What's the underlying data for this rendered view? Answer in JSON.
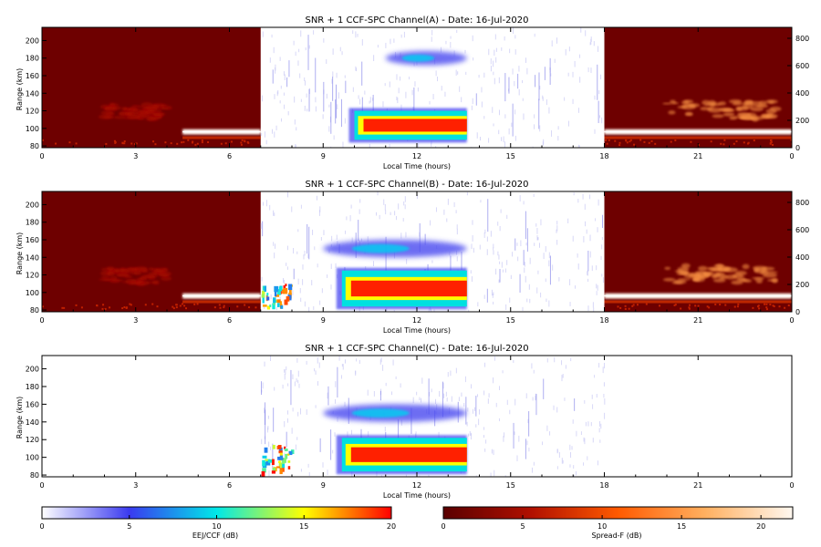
{
  "chart_data": [
    {
      "type": "heatmap",
      "title": "SNR + 1 CCF-SPC Channel(A) - Date: 16-Jul-2020",
      "xlabel": "Local Time (hours)",
      "ylabel": "Range (km)",
      "xlim": [
        0,
        24
      ],
      "ylim": [
        78,
        215
      ],
      "x_ticks": [
        "0",
        "3",
        "6",
        "9",
        "12",
        "15",
        "18",
        "21",
        "0"
      ],
      "y_ticks": [
        "80",
        "100",
        "120",
        "140",
        "160",
        "180",
        "200"
      ],
      "right_ticks": [
        "0",
        "200",
        "400",
        "600",
        "800"
      ],
      "right_ylim": [
        0,
        880
      ],
      "spreadf_segments": [
        [
          0,
          7
        ],
        [
          18,
          24
        ]
      ],
      "eej_data": {
        "x_range": [
          7,
          18
        ],
        "features": [
          {
            "range_km": [
              87,
              120
            ],
            "time_h": [
              10.0,
              13.6
            ],
            "peak_db": 20
          },
          {
            "range_km": [
              172,
              188
            ],
            "time_h": [
              11.0,
              13.6
            ],
            "peak_db": 5
          }
        ]
      },
      "spreadf_data": {
        "features": [
          {
            "range_km": [
              93,
              99
            ],
            "time_h": [
              4.5,
              7.0
            ],
            "peak_db": 22
          },
          {
            "range_km": [
              93,
              99
            ],
            "time_h": [
              18.0,
              24.0
            ],
            "peak_db": 22
          },
          {
            "range_km": [
              110,
              140
            ],
            "time_h": [
              20.0,
              23.5
            ],
            "peak_db": 15
          },
          {
            "range_km": [
              110,
              135
            ],
            "time_h": [
              2.0,
              4.0
            ],
            "peak_db": 5
          }
        ]
      }
    },
    {
      "type": "heatmap",
      "title": "SNR + 1 CCF-SPC Channel(B) - Date: 16-Jul-2020",
      "xlabel": "Local Time (hours)",
      "ylabel": "Range (km)",
      "xlim": [
        0,
        24
      ],
      "ylim": [
        78,
        215
      ],
      "x_ticks": [
        "0",
        "3",
        "6",
        "9",
        "12",
        "15",
        "18",
        "21",
        "0"
      ],
      "y_ticks": [
        "80",
        "100",
        "120",
        "140",
        "160",
        "180",
        "200"
      ],
      "right_ticks": [
        "0",
        "200",
        "400",
        "600",
        "800"
      ],
      "right_ylim": [
        0,
        880
      ],
      "spreadf_segments": [
        [
          0,
          7
        ],
        [
          18,
          24
        ]
      ],
      "eej_data": {
        "x_range": [
          7,
          18
        ],
        "features": [
          {
            "range_km": [
              84,
              125
            ],
            "time_h": [
              9.6,
              13.6
            ],
            "peak_db": 20
          },
          {
            "range_km": [
              140,
              160
            ],
            "time_h": [
              9.0,
              13.6
            ],
            "peak_db": 8
          },
          {
            "range_km": [
              84,
              110
            ],
            "time_h": [
              7.0,
              8.0
            ],
            "peak_db": 12
          }
        ]
      },
      "spreadf_data": {
        "features": [
          {
            "range_km": [
              93,
              99
            ],
            "time_h": [
              4.5,
              7.0
            ],
            "peak_db": 22
          },
          {
            "range_km": [
              93,
              99
            ],
            "time_h": [
              18.0,
              24.0
            ],
            "peak_db": 22
          },
          {
            "range_km": [
              110,
              140
            ],
            "time_h": [
              20.0,
              23.5
            ],
            "peak_db": 15
          },
          {
            "range_km": [
              110,
              135
            ],
            "time_h": [
              2.0,
              4.0
            ],
            "peak_db": 5
          }
        ]
      }
    },
    {
      "type": "heatmap",
      "title": "SNR + 1 CCF-SPC Channel(C) - Date: 16-Jul-2020",
      "xlabel": "Local Time (hours)",
      "ylabel": "Range (km)",
      "xlim": [
        0,
        24
      ],
      "ylim": [
        78,
        215
      ],
      "x_ticks": [
        "0",
        "3",
        "6",
        "9",
        "12",
        "15",
        "18",
        "21",
        "0"
      ],
      "y_ticks": [
        "80",
        "100",
        "120",
        "140",
        "160",
        "180",
        "200"
      ],
      "spreadf_segments": [],
      "eej_data": {
        "x_range": [
          7,
          18
        ],
        "features": [
          {
            "range_km": [
              84,
              122
            ],
            "time_h": [
              9.6,
              13.6
            ],
            "peak_db": 20
          },
          {
            "range_km": [
              140,
              160
            ],
            "time_h": [
              9.0,
              13.6
            ],
            "peak_db": 8
          },
          {
            "range_km": [
              84,
              115
            ],
            "time_h": [
              7.0,
              8.0
            ],
            "peak_db": 12
          }
        ]
      }
    }
  ],
  "colorbars": [
    {
      "label": "EEJ/CCF (dB)",
      "ticks": [
        "0",
        "5",
        "10",
        "15",
        "20"
      ],
      "range": [
        0,
        20
      ],
      "colors": [
        "#ffffff",
        "#3a3af0",
        "#00e8e8",
        "#ffff00",
        "#ff0000"
      ]
    },
    {
      "label": "Spread-F (dB)",
      "ticks": [
        "0",
        "5",
        "10",
        "15",
        "20"
      ],
      "range": [
        0,
        22
      ],
      "colors": [
        "#5a0000",
        "#b01000",
        "#ff5a00",
        "#ffb060",
        "#fff8f0"
      ]
    }
  ]
}
